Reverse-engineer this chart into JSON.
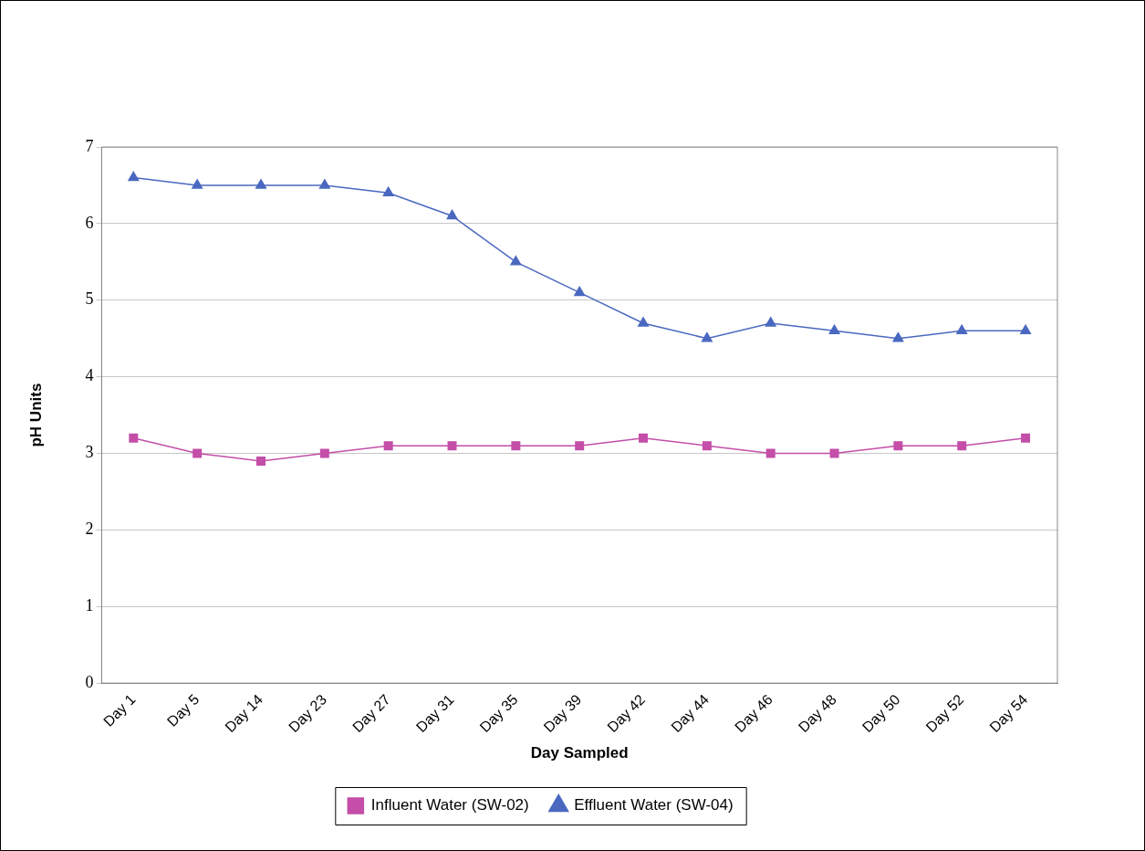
{
  "chart_data": {
    "type": "line",
    "xlabel": "Day Sampled",
    "ylabel": "pH Units",
    "categories": [
      "Day 1",
      "Day 5",
      "Day 14",
      "Day 23",
      "Day 27",
      "Day 31",
      "Day 35",
      "Day 39",
      "Day 42",
      "Day 44",
      "Day 46",
      "Day 48",
      "Day 50",
      "Day 52",
      "Day 54"
    ],
    "series": [
      {
        "name": "Influent Water (SW-02)",
        "color": "#c44ea8",
        "marker": "square",
        "values": [
          3.2,
          3.0,
          2.9,
          3.0,
          3.1,
          3.1,
          3.1,
          3.1,
          3.2,
          3.1,
          3.0,
          3.0,
          3.1,
          3.1,
          3.2
        ]
      },
      {
        "name": "Effluent Water (SW-04)",
        "color": "#4a68c0",
        "marker": "triangle",
        "values": [
          6.6,
          6.5,
          6.5,
          6.5,
          6.4,
          6.1,
          5.5,
          5.1,
          4.7,
          4.5,
          4.7,
          4.6,
          4.5,
          4.6,
          4.6
        ]
      }
    ],
    "ylim": [
      0,
      7
    ],
    "yticks": [
      0,
      1,
      2,
      3,
      4,
      5,
      6,
      7
    ],
    "grid": "y",
    "legend": "bottom"
  }
}
